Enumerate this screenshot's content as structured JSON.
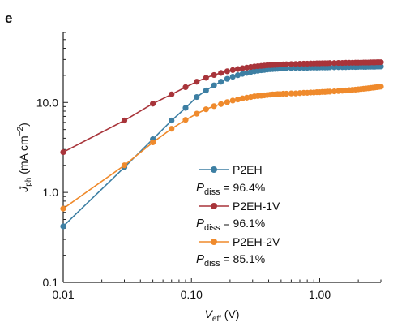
{
  "panel_label": "e",
  "chart_data": {
    "type": "scatter",
    "x_scale": "log",
    "y_scale": "log",
    "xlim": [
      0.01,
      3.0
    ],
    "ylim": [
      0.1,
      60
    ],
    "x_ticks": [
      0.01,
      0.1,
      1.0
    ],
    "x_tick_labels": [
      "0.01",
      "0.10",
      "1.00"
    ],
    "y_ticks": [
      0.1,
      1.0,
      10.0
    ],
    "y_tick_labels": [
      "0.1",
      "1.0",
      "10.0"
    ],
    "xlabel": {
      "main": "V",
      "sub": "eff",
      "unit": " (V)"
    },
    "ylabel": {
      "main": "J",
      "sub": "ph",
      "unit_open": " (mA cm",
      "unit_sup": "−2",
      "unit_close": ")"
    },
    "grid": false,
    "legend_position": "lower-middle",
    "series": [
      {
        "name": "P2EH",
        "annotation": {
          "symbol": "P",
          "sub": "diss",
          "text": " = 96.4%"
        },
        "color": "#3d7fa3",
        "x": [
          0.01,
          0.03,
          0.05,
          0.07,
          0.09,
          0.11,
          0.13,
          0.15,
          0.17,
          0.19,
          0.21,
          0.23,
          0.25,
          0.27,
          0.29,
          0.31,
          0.33,
          0.35,
          0.37,
          0.39,
          0.41,
          0.43,
          0.45,
          0.47,
          0.49,
          0.52,
          0.55,
          0.6,
          0.65,
          0.7,
          0.75,
          0.8,
          0.85,
          0.9,
          0.95,
          1.0,
          1.05,
          1.1,
          1.15,
          1.2,
          1.3,
          1.4,
          1.5,
          1.6,
          1.7,
          1.8,
          1.9,
          2.0,
          2.1,
          2.2,
          2.3,
          2.4,
          2.5,
          2.6,
          2.7,
          2.8,
          2.9,
          3.0
        ],
        "y": [
          0.42,
          1.9,
          3.9,
          6.3,
          8.7,
          11.5,
          13.6,
          15.5,
          17.0,
          18.3,
          19.3,
          20.1,
          20.8,
          21.3,
          21.8,
          22.2,
          22.5,
          22.8,
          23.0,
          23.2,
          23.4,
          23.5,
          23.6,
          23.7,
          23.8,
          23.9,
          24.0,
          24.1,
          24.2,
          24.2,
          24.3,
          24.3,
          24.4,
          24.4,
          24.4,
          24.5,
          24.5,
          24.5,
          24.5,
          24.6,
          24.6,
          24.7,
          24.7,
          24.7,
          24.8,
          24.8,
          24.8,
          24.9,
          24.9,
          24.9,
          24.9,
          25.0,
          25.0,
          25.0,
          25.0,
          25.1,
          25.1,
          25.1
        ]
      },
      {
        "name": "P2EH-1V",
        "annotation": {
          "symbol": "P",
          "sub": "diss",
          "text": " = 96.1%"
        },
        "color": "#a8343a",
        "x": [
          0.01,
          0.03,
          0.05,
          0.07,
          0.09,
          0.11,
          0.13,
          0.15,
          0.17,
          0.19,
          0.21,
          0.23,
          0.25,
          0.27,
          0.29,
          0.31,
          0.33,
          0.35,
          0.37,
          0.39,
          0.41,
          0.43,
          0.45,
          0.47,
          0.49,
          0.52,
          0.55,
          0.6,
          0.65,
          0.7,
          0.75,
          0.8,
          0.85,
          0.9,
          0.95,
          1.0,
          1.05,
          1.1,
          1.15,
          1.2,
          1.3,
          1.4,
          1.5,
          1.6,
          1.7,
          1.8,
          1.9,
          2.0,
          2.1,
          2.2,
          2.3,
          2.4,
          2.5,
          2.6,
          2.7,
          2.8,
          2.9,
          3.0
        ],
        "y": [
          2.8,
          6.3,
          9.7,
          12.3,
          14.8,
          17.0,
          18.8,
          20.2,
          21.3,
          22.2,
          22.9,
          23.5,
          24.0,
          24.4,
          24.8,
          25.1,
          25.3,
          25.5,
          25.7,
          25.9,
          26.0,
          26.1,
          26.2,
          26.3,
          26.4,
          26.5,
          26.6,
          26.7,
          26.8,
          26.9,
          27.0,
          27.0,
          27.1,
          27.1,
          27.2,
          27.2,
          27.3,
          27.3,
          27.3,
          27.4,
          27.4,
          27.5,
          27.5,
          27.6,
          27.6,
          27.6,
          27.7,
          27.7,
          27.7,
          27.8,
          27.8,
          27.8,
          27.9,
          27.9,
          27.9,
          28.0,
          28.0,
          28.0
        ]
      },
      {
        "name": "P2EH-2V",
        "annotation": {
          "symbol": "P",
          "sub": "diss",
          "text": " = 85.1%"
        },
        "color": "#ef8a2c",
        "x": [
          0.01,
          0.03,
          0.05,
          0.07,
          0.09,
          0.11,
          0.13,
          0.15,
          0.17,
          0.19,
          0.21,
          0.23,
          0.25,
          0.27,
          0.29,
          0.31,
          0.33,
          0.35,
          0.37,
          0.39,
          0.41,
          0.43,
          0.45,
          0.47,
          0.49,
          0.52,
          0.55,
          0.6,
          0.65,
          0.7,
          0.75,
          0.8,
          0.85,
          0.9,
          0.95,
          1.0,
          1.05,
          1.1,
          1.15,
          1.2,
          1.3,
          1.4,
          1.5,
          1.6,
          1.7,
          1.8,
          1.9,
          2.0,
          2.1,
          2.2,
          2.3,
          2.4,
          2.5,
          2.6,
          2.7,
          2.8,
          2.9,
          3.0
        ],
        "y": [
          0.66,
          2.0,
          3.6,
          5.1,
          6.4,
          7.5,
          8.4,
          9.1,
          9.6,
          10.1,
          10.5,
          10.8,
          11.1,
          11.3,
          11.5,
          11.7,
          11.8,
          11.9,
          12.0,
          12.1,
          12.2,
          12.3,
          12.3,
          12.4,
          12.4,
          12.5,
          12.5,
          12.6,
          12.6,
          12.7,
          12.8,
          12.8,
          12.9,
          12.9,
          13.0,
          13.0,
          13.1,
          13.1,
          13.2,
          13.2,
          13.3,
          13.4,
          13.5,
          13.6,
          13.7,
          13.8,
          13.9,
          14.0,
          14.1,
          14.2,
          14.3,
          14.4,
          14.5,
          14.6,
          14.7,
          14.8,
          14.9,
          15.0
        ]
      }
    ]
  }
}
